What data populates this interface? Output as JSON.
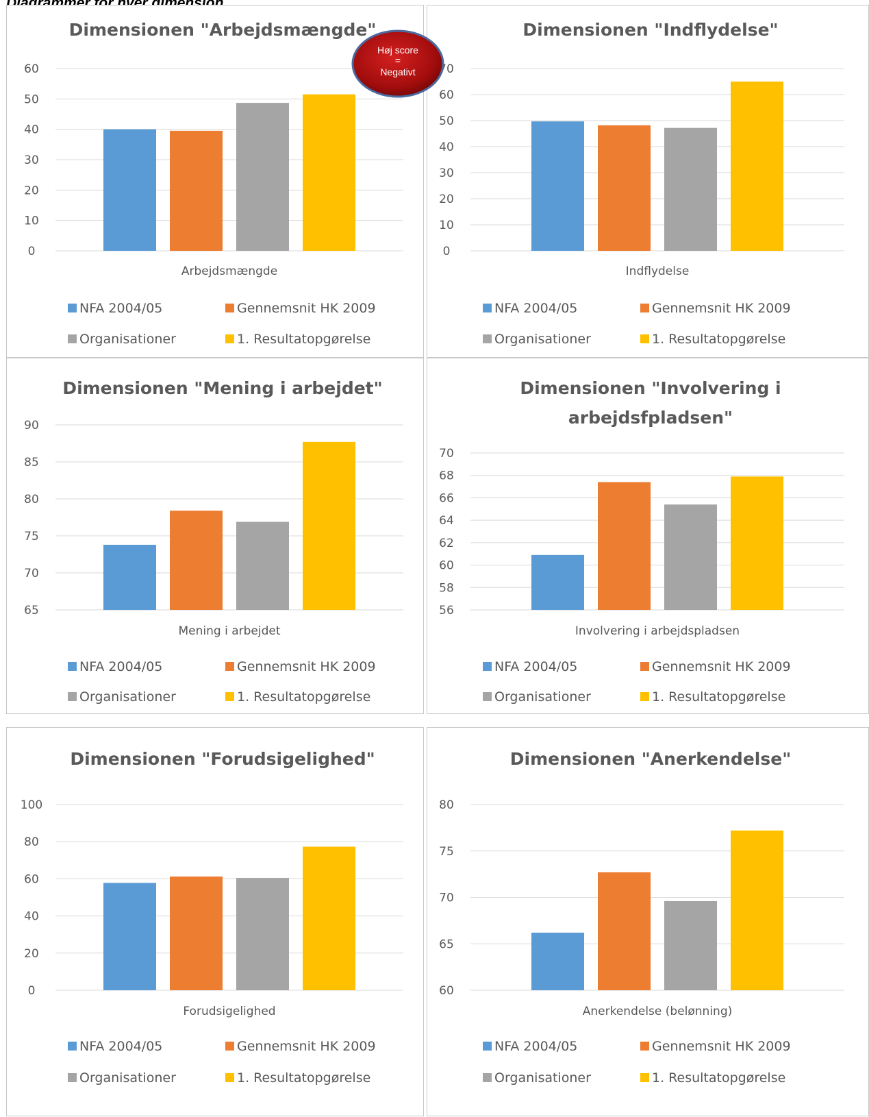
{
  "page_heading": "Diagrammer for hver dimension",
  "badge": {
    "line1": "Høj score",
    "line2": "=",
    "line3": "Negativt",
    "color": "#a30d0d"
  },
  "series_colors": [
    "#5b9bd5",
    "#ed7d31",
    "#a5a5a5",
    "#ffc000"
  ],
  "legend": [
    "NFA 2004/05",
    "Gennemsnit HK 2009",
    "Organisationer",
    "1. Resultatopgørelse"
  ],
  "chart_data": [
    {
      "type": "bar",
      "title": [
        "Dimensionen \"Arbejdsmængde\""
      ],
      "categories": [
        "Arbejdsmængde"
      ],
      "series": [
        {
          "name": "NFA 2004/05",
          "values": [
            40
          ]
        },
        {
          "name": "Gennemsnit HK 2009",
          "values": [
            39.5
          ]
        },
        {
          "name": "Organisationer",
          "values": [
            48.7
          ]
        },
        {
          "name": "1. Resultatopgørelse",
          "values": [
            51.5
          ]
        }
      ],
      "ylim": [
        0,
        60
      ],
      "yticks": [
        0,
        10,
        20,
        30,
        40,
        50,
        60
      ],
      "grid": true,
      "legend_position": "bottom"
    },
    {
      "type": "bar",
      "title": [
        "Dimensionen \"Indflydelse\""
      ],
      "categories": [
        "Indflydelse"
      ],
      "series": [
        {
          "name": "NFA 2004/05",
          "values": [
            49.7
          ]
        },
        {
          "name": "Gennemsnit HK 2009",
          "values": [
            48.2
          ]
        },
        {
          "name": "Organisationer",
          "values": [
            47.2
          ]
        },
        {
          "name": "1. Resultatopgørelse",
          "values": [
            65
          ]
        }
      ],
      "ylim": [
        0,
        70
      ],
      "yticks": [
        0,
        10,
        20,
        30,
        40,
        50,
        60,
        70
      ],
      "grid": true,
      "legend_position": "bottom"
    },
    {
      "type": "bar",
      "title": [
        "Dimensionen \"Mening i arbejdet\""
      ],
      "categories": [
        "Mening i arbejdet"
      ],
      "series": [
        {
          "name": "NFA 2004/05",
          "values": [
            73.8
          ]
        },
        {
          "name": "Gennemsnit HK 2009",
          "values": [
            78.4
          ]
        },
        {
          "name": "Organisationer",
          "values": [
            76.9
          ]
        },
        {
          "name": "1. Resultatopgørelse",
          "values": [
            87.7
          ]
        }
      ],
      "ylim": [
        65,
        90
      ],
      "yticks": [
        65,
        70,
        75,
        80,
        85,
        90
      ],
      "grid": true,
      "legend_position": "bottom"
    },
    {
      "type": "bar",
      "title": [
        "Dimensionen \"Involvering i",
        "arbejdsfpladsen\""
      ],
      "categories": [
        "Involvering i arbejdspladsen"
      ],
      "series": [
        {
          "name": "NFA 2004/05",
          "values": [
            60.9
          ]
        },
        {
          "name": "Gennemsnit HK 2009",
          "values": [
            67.4
          ]
        },
        {
          "name": "Organisationer",
          "values": [
            65.4
          ]
        },
        {
          "name": "1. Resultatopgørelse",
          "values": [
            67.9
          ]
        }
      ],
      "ylim": [
        56,
        70
      ],
      "yticks": [
        56,
        58,
        60,
        62,
        64,
        66,
        68,
        70
      ],
      "grid": true,
      "legend_position": "bottom"
    },
    {
      "type": "bar",
      "title": [
        "Dimensionen \"Forudsigelighed\""
      ],
      "categories": [
        "Forudsigelighed"
      ],
      "series": [
        {
          "name": "NFA 2004/05",
          "values": [
            57.8
          ]
        },
        {
          "name": "Gennemsnit HK 2009",
          "values": [
            61.2
          ]
        },
        {
          "name": "Organisationer",
          "values": [
            60.5
          ]
        },
        {
          "name": "1. Resultatopgørelse",
          "values": [
            77.3
          ]
        }
      ],
      "ylim": [
        0,
        100
      ],
      "yticks": [
        0,
        20,
        40,
        60,
        80,
        100
      ],
      "grid": true,
      "legend_position": "bottom"
    },
    {
      "type": "bar",
      "title": [
        "Dimensionen \"Anerkendelse\""
      ],
      "categories": [
        "Anerkendelse (belønning)"
      ],
      "series": [
        {
          "name": "NFA 2004/05",
          "values": [
            66.2
          ]
        },
        {
          "name": "Gennemsnit HK 2009",
          "values": [
            72.7
          ]
        },
        {
          "name": "Organisationer",
          "values": [
            69.6
          ]
        },
        {
          "name": "1. Resultatopgørelse",
          "values": [
            77.2
          ]
        }
      ],
      "ylim": [
        60,
        80
      ],
      "yticks": [
        60,
        65,
        70,
        75,
        80
      ],
      "grid": true,
      "legend_position": "bottom"
    }
  ]
}
